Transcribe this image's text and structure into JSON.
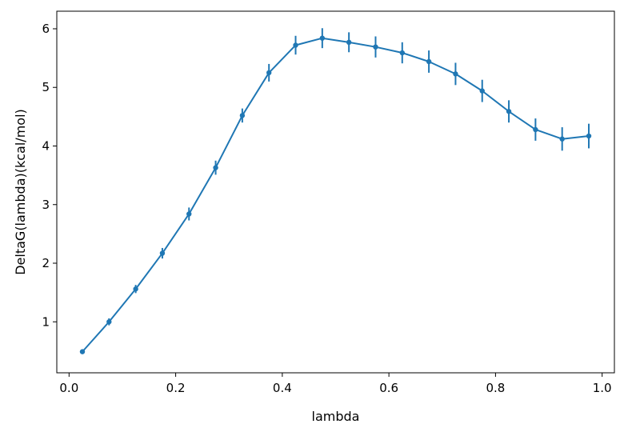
{
  "chart_data": {
    "type": "line",
    "title": "",
    "xlabel": "lambda",
    "ylabel": "DeltaG(lambda)(kcal/mol)",
    "xlim": [
      -0.023,
      1.023
    ],
    "ylim": [
      0.13,
      6.3
    ],
    "xticks": [
      0.0,
      0.2,
      0.4,
      0.6,
      0.8,
      1.0
    ],
    "xtick_labels": [
      "0.0",
      "0.2",
      "0.4",
      "0.6",
      "0.8",
      "1.0"
    ],
    "yticks": [
      1,
      2,
      3,
      4,
      5,
      6
    ],
    "ytick_labels": [
      "1",
      "2",
      "3",
      "4",
      "5",
      "6"
    ],
    "grid": false,
    "legend": "none",
    "series": [
      {
        "color": "#1f77b4",
        "marker": "dot",
        "x": [
          0.025,
          0.075,
          0.125,
          0.175,
          0.225,
          0.275,
          0.325,
          0.375,
          0.425,
          0.475,
          0.525,
          0.575,
          0.625,
          0.675,
          0.725,
          0.775,
          0.825,
          0.875,
          0.925,
          0.975
        ],
        "y": [
          0.49,
          1.0,
          1.56,
          2.17,
          2.84,
          3.63,
          4.52,
          5.25,
          5.72,
          5.84,
          5.77,
          5.69,
          5.59,
          5.44,
          5.23,
          4.94,
          4.59,
          4.28,
          4.12,
          4.17
        ],
        "yerr": [
          0.03,
          0.06,
          0.07,
          0.09,
          0.11,
          0.12,
          0.12,
          0.15,
          0.16,
          0.17,
          0.17,
          0.18,
          0.18,
          0.19,
          0.19,
          0.19,
          0.19,
          0.19,
          0.2,
          0.21
        ]
      }
    ]
  }
}
